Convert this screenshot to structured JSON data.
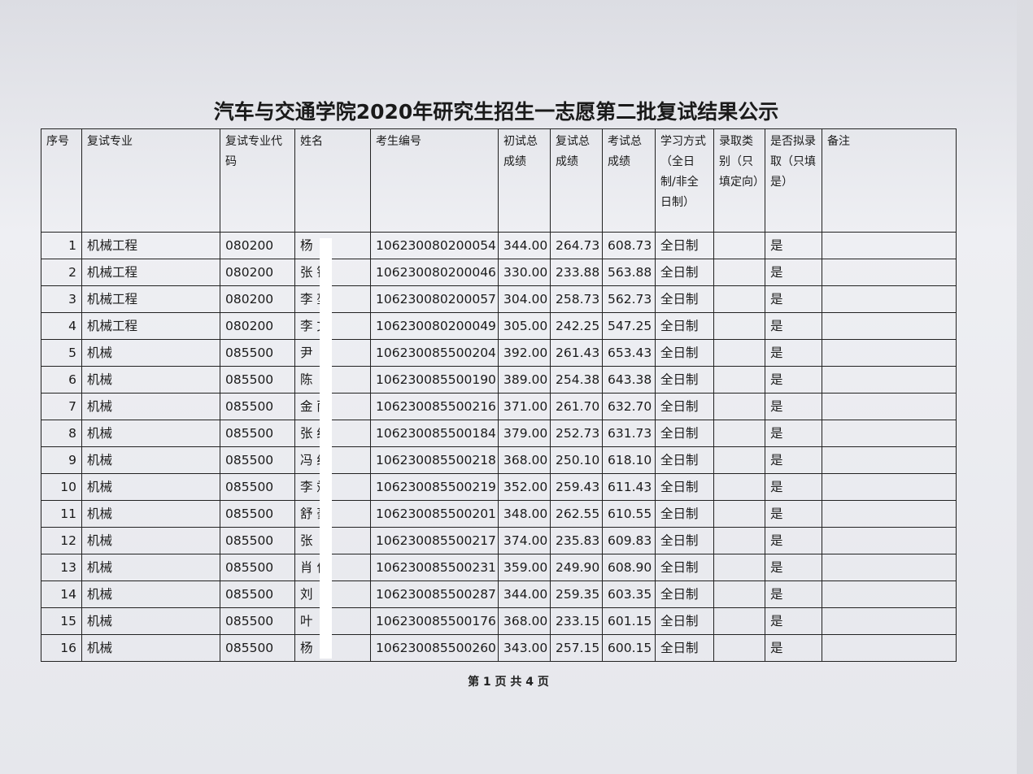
{
  "title": "汽车与交通学院2020年研究生招生一志愿第二批复试结果公示",
  "table": {
    "headers": {
      "no": "序号",
      "major": "复试专业",
      "code": "复试专业代码",
      "name": "姓名",
      "id": "考生编号",
      "prelim": "初试总成绩",
      "retest": "复试总成绩",
      "total": "考试总成绩",
      "mode": "学习方式（全日制/非全日制）",
      "category": "录取类别（只填定向）",
      "admit": "是否拟录取（只填是）",
      "note": "备注"
    },
    "rows": [
      {
        "no": 1,
        "major": "机械工程",
        "code": "080200",
        "name": "杨",
        "id": "106230080200054",
        "prelim": "344.00",
        "retest": "264.73",
        "total": "608.73",
        "mode": "全日制",
        "admit": "是"
      },
      {
        "no": 2,
        "major": "机械工程",
        "code": "080200",
        "name": "张 锋",
        "id": "106230080200046",
        "prelim": "330.00",
        "retest": "233.88",
        "total": "563.88",
        "mode": "全日制",
        "admit": "是"
      },
      {
        "no": 3,
        "major": "机械工程",
        "code": "080200",
        "name": "李 堃",
        "id": "106230080200057",
        "prelim": "304.00",
        "retest": "258.73",
        "total": "562.73",
        "mode": "全日制",
        "admit": "是"
      },
      {
        "no": 4,
        "major": "机械工程",
        "code": "080200",
        "name": "李 文",
        "id": "106230080200049",
        "prelim": "305.00",
        "retest": "242.25",
        "total": "547.25",
        "mode": "全日制",
        "admit": "是"
      },
      {
        "no": 5,
        "major": "机械",
        "code": "085500",
        "name": "尹",
        "id": "106230085500204",
        "prelim": "392.00",
        "retest": "261.43",
        "total": "653.43",
        "mode": "全日制",
        "admit": "是"
      },
      {
        "no": 6,
        "major": "机械",
        "code": "085500",
        "name": "陈",
        "id": "106230085500190",
        "prelim": "389.00",
        "retest": "254.38",
        "total": "643.38",
        "mode": "全日制",
        "admit": "是"
      },
      {
        "no": 7,
        "major": "机械",
        "code": "085500",
        "name": "金 雨",
        "id": "106230085500216",
        "prelim": "371.00",
        "retest": "261.70",
        "total": "632.70",
        "mode": "全日制",
        "admit": "是"
      },
      {
        "no": 8,
        "major": "机械",
        "code": "085500",
        "name": "张 红",
        "id": "106230085500184",
        "prelim": "379.00",
        "retest": "252.73",
        "total": "631.73",
        "mode": "全日制",
        "admit": "是"
      },
      {
        "no": 9,
        "major": "机械",
        "code": "085500",
        "name": "冯 红",
        "id": "106230085500218",
        "prelim": "368.00",
        "retest": "250.10",
        "total": "618.10",
        "mode": "全日制",
        "admit": "是"
      },
      {
        "no": 10,
        "major": "机械",
        "code": "085500",
        "name": "李 斌",
        "id": "106230085500219",
        "prelim": "352.00",
        "retest": "259.43",
        "total": "611.43",
        "mode": "全日制",
        "admit": "是"
      },
      {
        "no": 11,
        "major": "机械",
        "code": "085500",
        "name": "舒 豪",
        "id": "106230085500201",
        "prelim": "348.00",
        "retest": "262.55",
        "total": "610.55",
        "mode": "全日制",
        "admit": "是"
      },
      {
        "no": 12,
        "major": "机械",
        "code": "085500",
        "name": "张",
        "id": "106230085500217",
        "prelim": "374.00",
        "retest": "235.83",
        "total": "609.83",
        "mode": "全日制",
        "admit": "是"
      },
      {
        "no": 13,
        "major": "机械",
        "code": "085500",
        "name": "肖 伟",
        "id": "106230085500231",
        "prelim": "359.00",
        "retest": "249.90",
        "total": "608.90",
        "mode": "全日制",
        "admit": "是"
      },
      {
        "no": 14,
        "major": "机械",
        "code": "085500",
        "name": "刘",
        "id": "106230085500287",
        "prelim": "344.00",
        "retest": "259.35",
        "total": "603.35",
        "mode": "全日制",
        "admit": "是"
      },
      {
        "no": 15,
        "major": "机械",
        "code": "085500",
        "name": "叶",
        "id": "106230085500176",
        "prelim": "368.00",
        "retest": "233.15",
        "total": "601.15",
        "mode": "全日制",
        "admit": "是"
      },
      {
        "no": 16,
        "major": "机械",
        "code": "085500",
        "name": "杨",
        "id": "106230085500260",
        "prelim": "343.00",
        "retest": "257.15",
        "total": "600.15",
        "mode": "全日制",
        "admit": "是"
      }
    ]
  },
  "footer": "第 1 页 共 4 页"
}
